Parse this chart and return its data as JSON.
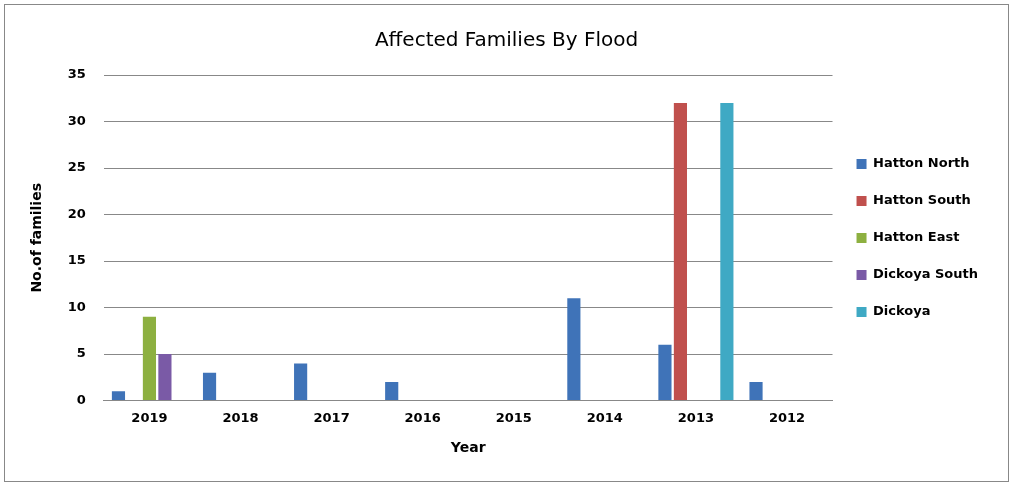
{
  "chart_data": {
    "type": "bar",
    "title": "Affected Families By Flood",
    "xlabel": "Year",
    "ylabel": "No.of families",
    "categories": [
      "2019",
      "2018",
      "2017",
      "2016",
      "2015",
      "2014",
      "2013",
      "2012"
    ],
    "series": [
      {
        "name": "Hatton North",
        "color": "#3f73b8",
        "values": [
          1,
          3,
          4,
          2,
          null,
          11,
          6,
          2
        ]
      },
      {
        "name": "Hatton South",
        "color": "#c0504d",
        "values": [
          null,
          null,
          null,
          null,
          null,
          null,
          32,
          null
        ]
      },
      {
        "name": "Hatton East",
        "color": "#8db040",
        "values": [
          9,
          null,
          null,
          null,
          null,
          null,
          null,
          null
        ]
      },
      {
        "name": "Dickoya South",
        "color": "#7a5aa6",
        "values": [
          5,
          null,
          null,
          null,
          null,
          null,
          null,
          null
        ]
      },
      {
        "name": "Dickoya",
        "color": "#3fa9c4",
        "values": [
          null,
          null,
          null,
          null,
          null,
          null,
          32,
          null
        ]
      }
    ],
    "ylim": [
      0,
      35
    ],
    "yticks": [
      0,
      5,
      10,
      15,
      20,
      25,
      30,
      35
    ],
    "grid": "y",
    "legend": "right"
  }
}
